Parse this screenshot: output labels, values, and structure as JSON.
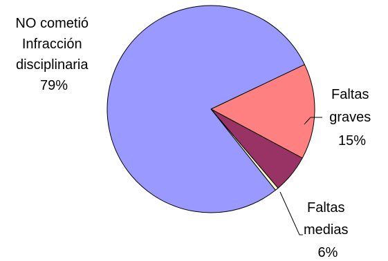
{
  "chart_data": {
    "type": "pie",
    "title": "",
    "slices": [
      {
        "label_lines": [
          "NO cometió",
          "Infracción",
          "disciplinaria"
        ],
        "percent_text": "79%",
        "value": 79,
        "color": "#9999FF"
      },
      {
        "label_lines": [
          "Faltas",
          "graves"
        ],
        "percent_text": "15%",
        "value": 15,
        "color": "#FF8080"
      },
      {
        "label_lines": [
          "Faltas",
          "medias"
        ],
        "percent_text": "6%",
        "value": 6,
        "color": "#993366"
      },
      {
        "label_lines": [],
        "percent_text": "",
        "value": 0.5,
        "color": "#FFFFCC"
      }
    ],
    "legend": "none",
    "outline_color": "#000000"
  }
}
